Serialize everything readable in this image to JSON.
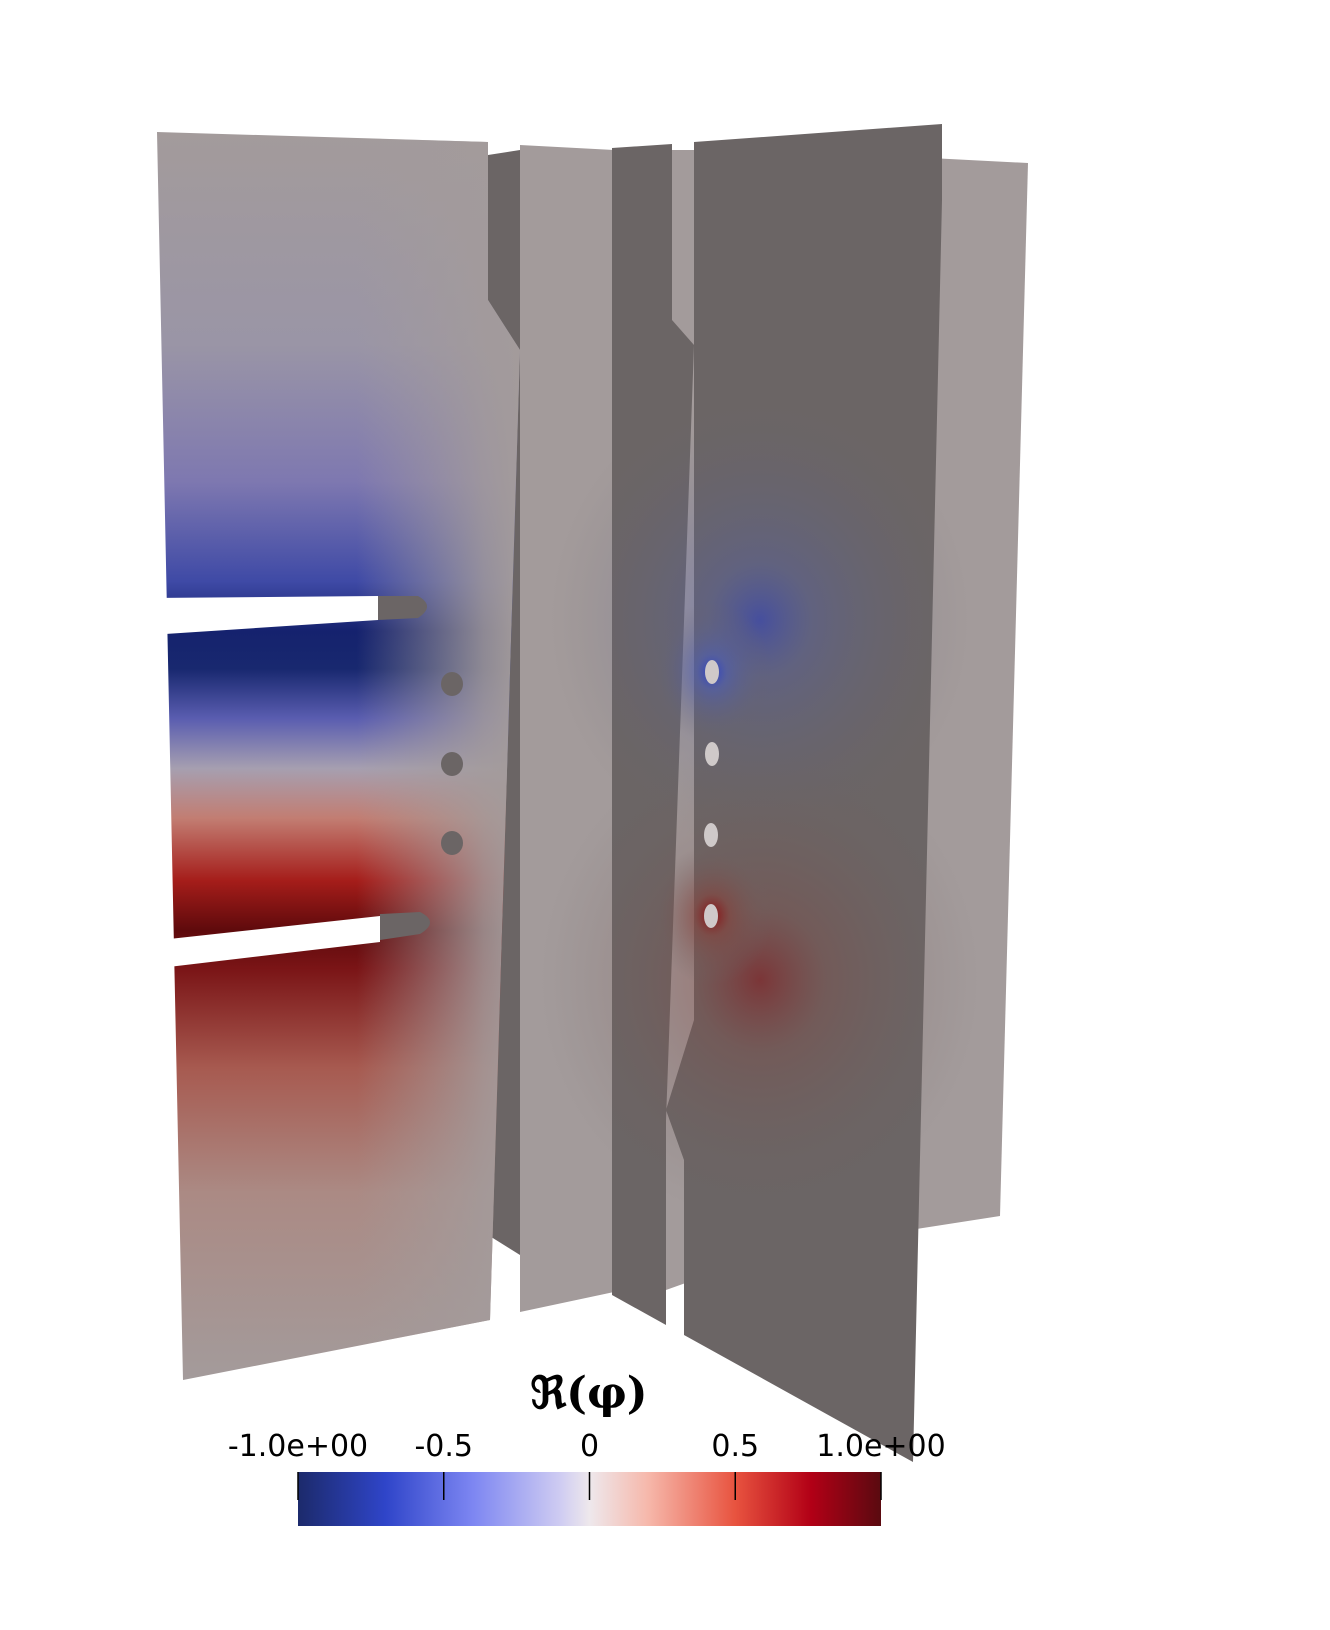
{
  "colorbar": {
    "title": "ℜ(φ)",
    "min_label": "-1.0e+00",
    "max_label": "1.0e+00",
    "ticks": [
      {
        "value": -1.0,
        "label": "-1.0e+00"
      },
      {
        "value": -0.5,
        "label": "-0.5"
      },
      {
        "value": 0.0,
        "label": "0"
      },
      {
        "value": 0.5,
        "label": "0.5"
      },
      {
        "value": 1.0,
        "label": "1.0e+00"
      }
    ],
    "range": [
      -1.0,
      1.0
    ],
    "colormap": "cool-to-warm",
    "colors": {
      "low": "#1c2a6b",
      "mid_low": "#3a52d8",
      "center": "#e8e4ee",
      "mid_high": "#e8413a",
      "high": "#6b0a12"
    }
  },
  "surface_colors": {
    "light_gray": "#a39b9b",
    "dark_gray": "#6b6565",
    "hole_light": "#cfc9c9"
  }
}
